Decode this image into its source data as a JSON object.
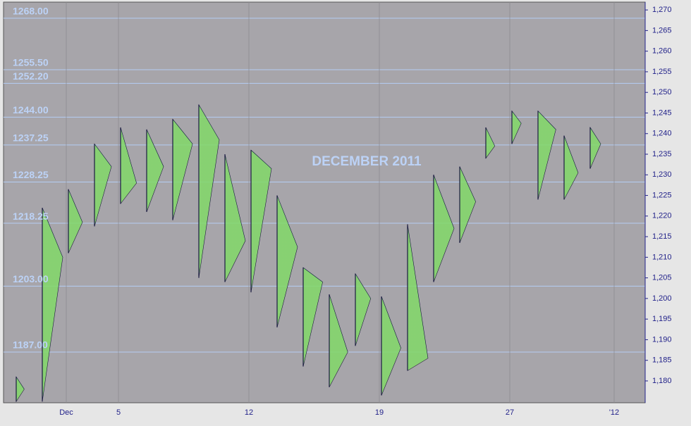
{
  "chart_data": {
    "type": "profile",
    "title": "DECEMBER 2011",
    "categories": [
      null,
      null,
      "Dec",
      null,
      "5",
      null,
      null,
      null,
      null,
      "12",
      null,
      null,
      null,
      null,
      "19",
      null,
      null,
      null,
      null,
      "27",
      null,
      null,
      null,
      "'12"
    ],
    "high": [
      1181,
      1222,
      1226.5,
      1237.5,
      1241.5,
      1241,
      1243.5,
      1247,
      1235,
      1236,
      1225,
      1207.5,
      1201,
      1206,
      1200.5,
      1218,
      1230,
      1232,
      1241.5,
      1245.5,
      1245.5,
      1239.5,
      1241.5,
      null
    ],
    "low": [
      1175,
      1175,
      1211,
      1217.5,
      1223,
      1221,
      1219,
      1205,
      1204,
      1201.5,
      1193,
      1183.5,
      1178.5,
      1188.5,
      1176.5,
      1182.5,
      1204,
      1213.5,
      1234,
      1237.5,
      1224,
      1224,
      1231.5,
      null
    ],
    "poc": [
      1178,
      1210,
      1218.5,
      1232,
      1228,
      1232,
      1237.5,
      1238.5,
      1214,
      1231.5,
      1212.5,
      1204,
      1187,
      1200,
      1188,
      1185.5,
      1217,
      1223.5,
      1237,
      1242.5,
      1241,
      1230.5,
      1237.5,
      null
    ],
    "levels": [
      {
        "value": 1268,
        "label": "1268.00"
      },
      {
        "value": 1255.5,
        "label": "1255.50"
      },
      {
        "value": 1252.2,
        "label": "1252.20"
      },
      {
        "value": 1244,
        "label": "1244.00"
      },
      {
        "value": 1237.25,
        "label": "1237.25"
      },
      {
        "value": 1228.25,
        "label": "1228.25"
      },
      {
        "value": 1218.25,
        "label": "1218.25"
      },
      {
        "value": 1203,
        "label": "1203.00"
      },
      {
        "value": 1187,
        "label": "1187.00"
      }
    ],
    "ylim": [
      1174.7,
      1271.9
    ],
    "yticks": [
      {
        "value": 1180,
        "label": "1,180"
      },
      {
        "value": 1185,
        "label": "1,185"
      },
      {
        "value": 1190,
        "label": "1,190"
      },
      {
        "value": 1195,
        "label": "1,195"
      },
      {
        "value": 1200,
        "label": "1,200"
      },
      {
        "value": 1205,
        "label": "1,205"
      },
      {
        "value": 1210,
        "label": "1,210"
      },
      {
        "value": 1215,
        "label": "1,215"
      },
      {
        "value": 1220,
        "label": "1,220"
      },
      {
        "value": 1225,
        "label": "1,225"
      },
      {
        "value": 1230,
        "label": "1,230"
      },
      {
        "value": 1235,
        "label": "1,235"
      },
      {
        "value": 1240,
        "label": "1,240"
      },
      {
        "value": 1245,
        "label": "1,245"
      },
      {
        "value": 1250,
        "label": "1,250"
      },
      {
        "value": 1255,
        "label": "1,255"
      },
      {
        "value": 1260,
        "label": "1,260"
      },
      {
        "value": 1265,
        "label": "1,265"
      },
      {
        "value": 1270,
        "label": "1,270"
      }
    ]
  }
}
